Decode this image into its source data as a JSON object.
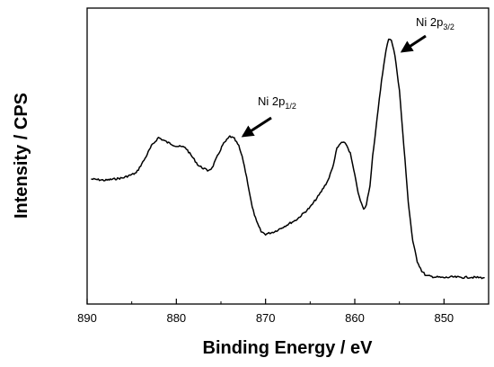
{
  "chart_data": {
    "type": "line",
    "xlabel": "Binding Energy / eV",
    "ylabel": "Intensity / CPS",
    "xlim": [
      890,
      845
    ],
    "ylim": [
      0,
      1
    ],
    "x_axis_reversed": true,
    "y_ticks_shown": false,
    "grid": false,
    "legend": "none",
    "xticks": [
      890,
      880,
      870,
      860,
      850
    ],
    "xtick_labels": [
      "890",
      "880",
      "870",
      "860",
      "850"
    ],
    "line_color": "#000000",
    "series": [
      {
        "x": [
          889.5,
          888,
          886,
          884.5,
          883.5,
          882.8,
          882,
          881,
          880,
          879,
          878.5,
          877.5,
          876.5,
          876,
          875.5,
          874.8,
          874,
          873.5,
          873,
          872.5,
          872,
          871.5,
          871,
          870.5,
          870,
          869,
          868,
          866.5,
          865,
          864,
          863,
          862.5,
          862,
          861.5,
          861,
          860.5,
          860,
          859.5,
          859,
          858.7,
          858.3,
          858,
          857.5,
          857,
          856.5,
          856.2,
          855.9,
          855.5,
          855,
          854.5,
          854,
          853.5,
          853,
          852.5,
          852,
          851,
          850,
          849,
          848,
          847,
          845.5
        ],
        "y": [
          0.415,
          0.41,
          0.42,
          0.44,
          0.5,
          0.55,
          0.585,
          0.565,
          0.55,
          0.545,
          0.52,
          0.47,
          0.45,
          0.46,
          0.5,
          0.555,
          0.59,
          0.58,
          0.55,
          0.49,
          0.4,
          0.3,
          0.24,
          0.2,
          0.19,
          0.2,
          0.22,
          0.25,
          0.3,
          0.35,
          0.41,
          0.46,
          0.54,
          0.565,
          0.56,
          0.52,
          0.43,
          0.34,
          0.29,
          0.31,
          0.39,
          0.51,
          0.66,
          0.82,
          0.94,
          0.99,
          0.985,
          0.92,
          0.78,
          0.55,
          0.32,
          0.16,
          0.08,
          0.04,
          0.02,
          0.015,
          0.012,
          0.015,
          0.013,
          0.014,
          0.012
        ]
      }
    ],
    "annotations": [
      {
        "text": "Ni 2p",
        "subscript": "3/2",
        "arrow_to_x": 856.2,
        "arrow_to_y": 0.99
      },
      {
        "text": "Ni 2p",
        "subscript": "1/2",
        "arrow_to_x": 873.5,
        "arrow_to_y": 0.59
      }
    ]
  }
}
